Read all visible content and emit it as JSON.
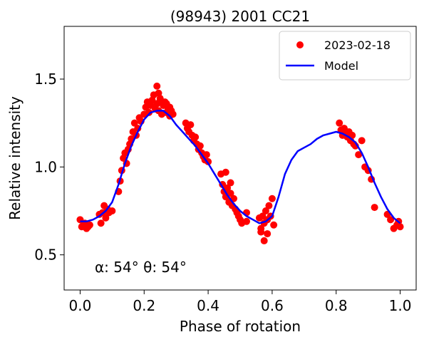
{
  "chart_data": {
    "type": "scatter",
    "title": "(98943) 2001 CC21",
    "xlabel": "Phase of rotation",
    "ylabel": "Relative intensity",
    "xlim": [
      -0.05,
      1.05
    ],
    "ylim": [
      0.3,
      1.8
    ],
    "xticks": [
      0.0,
      0.2,
      0.4,
      0.6,
      0.8,
      1.0
    ],
    "xtick_labels": [
      "0.0",
      "0.2",
      "0.4",
      "0.6",
      "0.8",
      "1.0"
    ],
    "yticks": [
      0.5,
      1.0,
      1.5
    ],
    "ytick_labels": [
      "0.5",
      "1.0",
      "1.5"
    ],
    "grid": false,
    "legend": "top-right",
    "annotation": "α: 54° θ: 54°",
    "series": [
      {
        "name": "2023-02-18",
        "kind": "points",
        "color": "#ff0000",
        "x": [
          0.0,
          0.005,
          0.01,
          0.015,
          0.02,
          0.025,
          0.03,
          0.06,
          0.065,
          0.07,
          0.075,
          0.08,
          0.085,
          0.09,
          0.1,
          0.12,
          0.125,
          0.13,
          0.135,
          0.14,
          0.145,
          0.15,
          0.155,
          0.16,
          0.165,
          0.17,
          0.175,
          0.18,
          0.185,
          0.19,
          0.2,
          0.205,
          0.21,
          0.215,
          0.22,
          0.225,
          0.23,
          0.235,
          0.24,
          0.245,
          0.25,
          0.255,
          0.26,
          0.265,
          0.27,
          0.275,
          0.28,
          0.285,
          0.29,
          0.33,
          0.335,
          0.34,
          0.345,
          0.35,
          0.355,
          0.36,
          0.365,
          0.37,
          0.375,
          0.38,
          0.385,
          0.39,
          0.395,
          0.4,
          0.44,
          0.445,
          0.45,
          0.455,
          0.46,
          0.465,
          0.47,
          0.475,
          0.48,
          0.485,
          0.49,
          0.495,
          0.5,
          0.505,
          0.56,
          0.565,
          0.57,
          0.575,
          0.58,
          0.585,
          0.59,
          0.595,
          0.6,
          0.605,
          0.81,
          0.815,
          0.82,
          0.825,
          0.83,
          0.835,
          0.84,
          0.845,
          0.85,
          0.855,
          0.86,
          0.87,
          0.88,
          0.89,
          0.9,
          0.91,
          0.92,
          0.96,
          0.97,
          0.98,
          0.99,
          0.995,
          1.0,
          0.24,
          0.245,
          0.25,
          0.27,
          0.28,
          0.575,
          0.585,
          0.565,
          0.455,
          0.47,
          0.52,
          0.52
        ],
        "y": [
          0.7,
          0.66,
          0.67,
          0.68,
          0.65,
          0.66,
          0.67,
          0.73,
          0.68,
          0.74,
          0.78,
          0.71,
          0.76,
          0.74,
          0.75,
          0.86,
          0.92,
          0.98,
          1.05,
          1.08,
          1.02,
          1.1,
          1.13,
          1.16,
          1.2,
          1.25,
          1.18,
          1.22,
          1.28,
          1.26,
          1.3,
          1.34,
          1.37,
          1.31,
          1.35,
          1.38,
          1.41,
          1.33,
          1.36,
          1.32,
          1.38,
          1.3,
          1.35,
          1.37,
          1.31,
          1.33,
          1.29,
          1.32,
          1.3,
          1.25,
          1.22,
          1.2,
          1.24,
          1.18,
          1.15,
          1.17,
          1.13,
          1.1,
          1.12,
          1.08,
          1.06,
          1.04,
          1.07,
          1.03,
          0.96,
          0.9,
          0.86,
          0.83,
          0.88,
          0.8,
          0.85,
          0.78,
          0.82,
          0.76,
          0.74,
          0.72,
          0.7,
          0.68,
          0.71,
          0.65,
          0.72,
          0.68,
          0.75,
          0.7,
          0.78,
          0.72,
          0.82,
          0.67,
          1.25,
          1.21,
          1.18,
          1.22,
          1.19,
          1.17,
          1.2,
          1.15,
          1.18,
          1.13,
          1.12,
          1.07,
          1.15,
          1.0,
          0.98,
          0.93,
          0.77,
          0.73,
          0.7,
          0.65,
          0.67,
          0.69,
          0.66,
          1.46,
          1.42,
          1.39,
          1.36,
          1.34,
          0.58,
          0.62,
          0.63,
          0.97,
          0.91,
          0.74,
          0.69
        ]
      },
      {
        "name": "Model",
        "kind": "line",
        "color": "#0000ff",
        "x": [
          0.0,
          0.02,
          0.04,
          0.06,
          0.08,
          0.1,
          0.12,
          0.14,
          0.16,
          0.18,
          0.2,
          0.22,
          0.24,
          0.26,
          0.28,
          0.3,
          0.32,
          0.34,
          0.36,
          0.38,
          0.4,
          0.42,
          0.44,
          0.46,
          0.48,
          0.5,
          0.52,
          0.54,
          0.56,
          0.58,
          0.6,
          0.62,
          0.64,
          0.66,
          0.68,
          0.7,
          0.72,
          0.74,
          0.76,
          0.78,
          0.8,
          0.82,
          0.84,
          0.86,
          0.88,
          0.9,
          0.92,
          0.94,
          0.96,
          0.98,
          1.0
        ],
        "y": [
          0.69,
          0.69,
          0.7,
          0.72,
          0.75,
          0.8,
          0.9,
          1.02,
          1.12,
          1.2,
          1.27,
          1.31,
          1.32,
          1.32,
          1.29,
          1.24,
          1.2,
          1.16,
          1.12,
          1.07,
          1.02,
          0.96,
          0.9,
          0.84,
          0.79,
          0.75,
          0.72,
          0.7,
          0.68,
          0.69,
          0.72,
          0.83,
          0.96,
          1.04,
          1.09,
          1.11,
          1.13,
          1.16,
          1.18,
          1.19,
          1.2,
          1.19,
          1.17,
          1.14,
          1.08,
          1.0,
          0.91,
          0.83,
          0.76,
          0.71,
          0.68
        ]
      }
    ]
  }
}
